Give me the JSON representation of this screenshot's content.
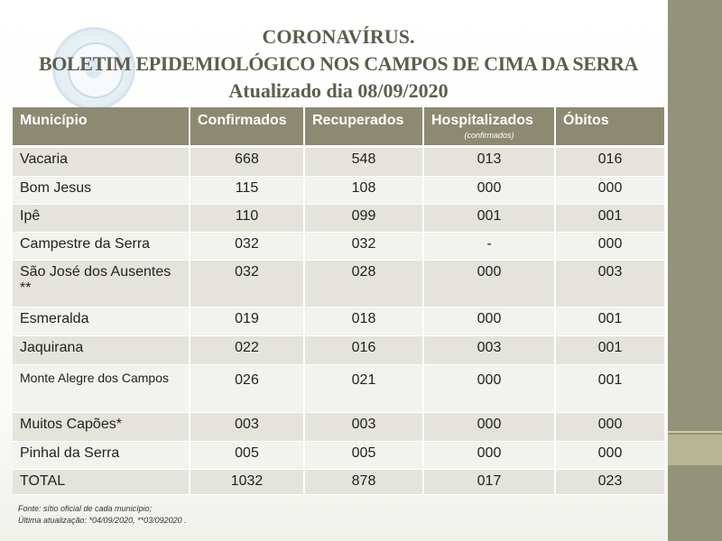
{
  "title": {
    "line1": "CORONAVÍRUS.",
    "line2": "BOLETIM EPIDEMIOLÓGICO NOS  CAMPOS DE CIMA DA SERRA",
    "line3": "Atualizado dia 08/09/2020"
  },
  "table": {
    "headers": {
      "municipio": "Município",
      "confirmados": "Confirmados",
      "recuperados": "Recuperados",
      "hospitalizados": "Hospitalizados",
      "hospitalizados_sub": "(confirmados)",
      "obitos": "Óbitos"
    },
    "rows": [
      {
        "municipio": "Vacaria",
        "confirmados": "668",
        "recuperados": "548",
        "hospitalizados": "013",
        "obitos": "016"
      },
      {
        "municipio": "Bom Jesus",
        "confirmados": "115",
        "recuperados": "108",
        "hospitalizados": "000",
        "obitos": "000"
      },
      {
        "municipio": "Ipê",
        "confirmados": "110",
        "recuperados": "099",
        "hospitalizados": "001",
        "obitos": "001"
      },
      {
        "municipio": "Campestre da Serra",
        "confirmados": "032",
        "recuperados": "032",
        "hospitalizados": "-",
        "obitos": "000"
      },
      {
        "municipio": "São José dos Ausentes **",
        "confirmados": "032",
        "recuperados": "028",
        "hospitalizados": "000",
        "obitos": "003"
      },
      {
        "municipio": "Esmeralda",
        "confirmados": "019",
        "recuperados": "018",
        "hospitalizados": "000",
        "obitos": "001"
      },
      {
        "municipio": "Jaquirana",
        "confirmados": "022",
        "recuperados": "016",
        "hospitalizados": "003",
        "obitos": "001"
      },
      {
        "municipio": "Monte Alegre dos Campos",
        "confirmados": "026",
        "recuperados": "021",
        "hospitalizados": "000",
        "obitos": "001"
      },
      {
        "municipio": "Muitos Capões*",
        "confirmados": "003",
        "recuperados": "003",
        "hospitalizados": "000",
        "obitos": "000"
      },
      {
        "municipio": "Pinhal da Serra",
        "confirmados": "005",
        "recuperados": "005",
        "hospitalizados": "000",
        "obitos": "000"
      },
      {
        "municipio": "TOTAL",
        "confirmados": "1032",
        "recuperados": "878",
        "hospitalizados": "017",
        "obitos": "023"
      }
    ]
  },
  "footnotes": {
    "source": "Fonte: sítio oficial de cada município;",
    "update": "Última atualização: *04/09/2020, **03/092020 ."
  },
  "colors": {
    "header_bg": "#8d8a72",
    "row_odd": "#e4e3dc",
    "row_even": "#f2f2ee",
    "side_bar": "#939379",
    "title_text": "#5e5e4e"
  },
  "icons": {
    "seal": "municipal-seal-watermark"
  }
}
